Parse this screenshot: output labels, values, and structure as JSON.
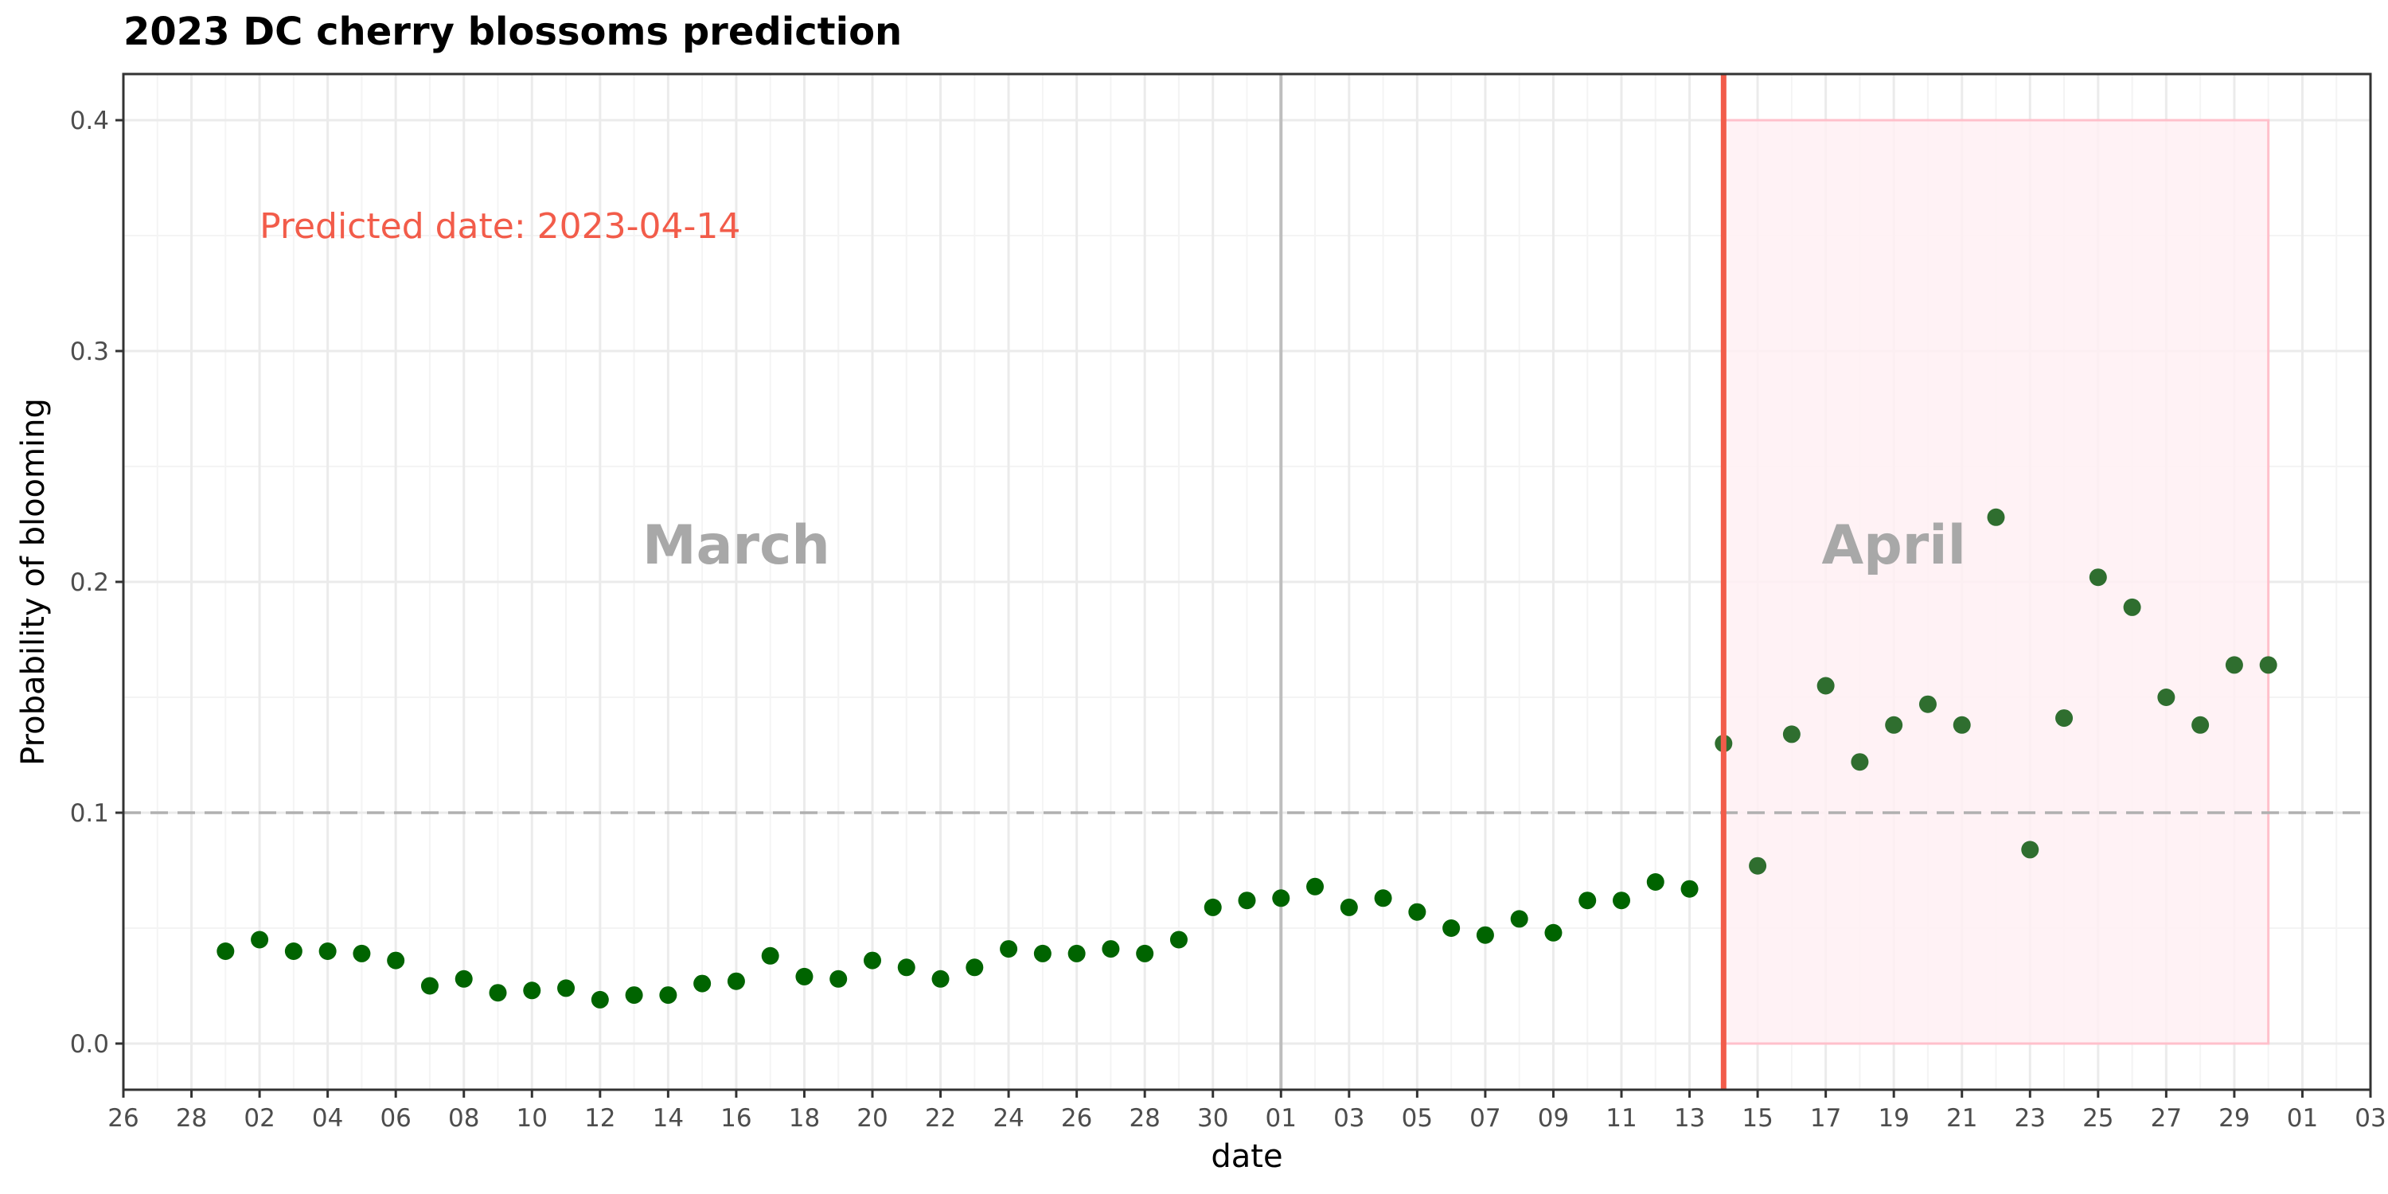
{
  "chart_data": {
    "type": "scatter",
    "title": "2023 DC cherry blossoms prediction",
    "xlabel": "date",
    "ylabel": "Probability of blooming",
    "xlim": [
      "2023-02-26",
      "2023-05-03"
    ],
    "ylim": [
      -0.02,
      0.42
    ],
    "y_ticks": [
      "0.0",
      "0.1",
      "0.2",
      "0.3",
      "0.4"
    ],
    "y_tick_values": [
      0.0,
      0.1,
      0.2,
      0.3,
      0.4
    ],
    "x_tick_dates": [
      "2023-02-26",
      "2023-02-28",
      "2023-03-02",
      "2023-03-04",
      "2023-03-06",
      "2023-03-08",
      "2023-03-10",
      "2023-03-12",
      "2023-03-14",
      "2023-03-16",
      "2023-03-18",
      "2023-03-20",
      "2023-03-22",
      "2023-03-24",
      "2023-03-26",
      "2023-03-28",
      "2023-03-30",
      "2023-04-01",
      "2023-04-03",
      "2023-04-05",
      "2023-04-07",
      "2023-04-09",
      "2023-04-11",
      "2023-04-13",
      "2023-04-15",
      "2023-04-17",
      "2023-04-19",
      "2023-04-21",
      "2023-04-23",
      "2023-04-25",
      "2023-04-27",
      "2023-04-29",
      "2023-05-01",
      "2023-05-03"
    ],
    "x_tick_labels": [
      "26",
      "28",
      "02",
      "04",
      "06",
      "08",
      "10",
      "12",
      "14",
      "16",
      "18",
      "20",
      "22",
      "24",
      "26",
      "28",
      "30",
      "01",
      "03",
      "05",
      "07",
      "09",
      "11",
      "13",
      "15",
      "17",
      "19",
      "21",
      "23",
      "25",
      "27",
      "29",
      "01",
      "03"
    ],
    "x_values": [
      "2023-03-01",
      "2023-03-02",
      "2023-03-03",
      "2023-03-04",
      "2023-03-05",
      "2023-03-06",
      "2023-03-07",
      "2023-03-08",
      "2023-03-09",
      "2023-03-10",
      "2023-03-11",
      "2023-03-12",
      "2023-03-13",
      "2023-03-14",
      "2023-03-15",
      "2023-03-16",
      "2023-03-17",
      "2023-03-18",
      "2023-03-19",
      "2023-03-20",
      "2023-03-21",
      "2023-03-22",
      "2023-03-23",
      "2023-03-24",
      "2023-03-25",
      "2023-03-26",
      "2023-03-27",
      "2023-03-28",
      "2023-03-29",
      "2023-03-30",
      "2023-03-31",
      "2023-04-01",
      "2023-04-02",
      "2023-04-03",
      "2023-04-04",
      "2023-04-05",
      "2023-04-06",
      "2023-04-07",
      "2023-04-08",
      "2023-04-09",
      "2023-04-10",
      "2023-04-11",
      "2023-04-12",
      "2023-04-13",
      "2023-04-14",
      "2023-04-15",
      "2023-04-16",
      "2023-04-17",
      "2023-04-18",
      "2023-04-19",
      "2023-04-20",
      "2023-04-21",
      "2023-04-22",
      "2023-04-23",
      "2023-04-24",
      "2023-04-25",
      "2023-04-26",
      "2023-04-27",
      "2023-04-28",
      "2023-04-29",
      "2023-04-30"
    ],
    "y_values": [
      0.04,
      0.045,
      0.04,
      0.04,
      0.039,
      0.036,
      0.025,
      0.028,
      0.022,
      0.023,
      0.024,
      0.019,
      0.021,
      0.021,
      0.026,
      0.027,
      0.038,
      0.029,
      0.028,
      0.036,
      0.033,
      0.028,
      0.033,
      0.041,
      0.039,
      0.039,
      0.041,
      0.039,
      0.045,
      0.059,
      0.062,
      0.063,
      0.068,
      0.059,
      0.063,
      0.057,
      0.05,
      0.047,
      0.054,
      0.048,
      0.062,
      0.062,
      0.07,
      0.067,
      0.13,
      0.077,
      0.134,
      0.155,
      0.122,
      0.138,
      0.147,
      0.138,
      0.228,
      0.084,
      0.141,
      0.202,
      0.189,
      0.15,
      0.138,
      0.164,
      0.164
    ],
    "threshold": 0.1,
    "month_divider": "2023-04-01",
    "predicted_date": "2023-04-14",
    "highlight_range": {
      "x": [
        "2023-04-14",
        "2023-04-30"
      ],
      "y": [
        0.0,
        0.4
      ]
    },
    "grid": true,
    "month_labels": [
      {
        "text": "March",
        "x": "2023-03-16",
        "y": 0.208
      },
      {
        "text": "April",
        "x": "2023-04-19",
        "y": 0.208
      }
    ],
    "annotation": {
      "text": "Predicted date: 2023-04-14",
      "x": "2023-03-02",
      "y": 0.349
    },
    "colors": {
      "point_march": "#006400",
      "point_april": "#2f6e2f",
      "predicted_line": "#f25c4a",
      "annotation": "#f25c4a",
      "highlight_fill": "#fff0f3",
      "highlight_stroke": "#ffc0cb",
      "threshold": "#b0b0b0",
      "month_divider": "#bebebe",
      "month_label": "#a8a8a8",
      "grid_major": "#ebebeb",
      "grid_minor": "#f4f4f4",
      "panel_border": "#333333"
    }
  }
}
